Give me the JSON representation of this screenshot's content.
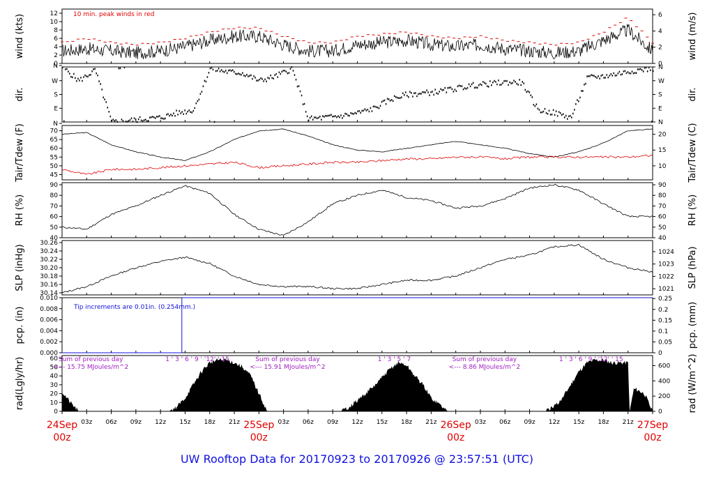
{
  "footer": {
    "title": "UW Rooftop Data for 20170923  to  20170926 @ 23:57:51  (UTC)"
  },
  "colors": {
    "series": "#000000",
    "peak": "#e00000",
    "dew": "#e00000",
    "precip": "#1010e0",
    "rad_note": "#a020c0",
    "title": "#1010e0"
  },
  "time_axis": {
    "hour_ticks": [
      "03z",
      "06z",
      "09z",
      "12z",
      "15z",
      "18z",
      "21z"
    ],
    "day_labels": [
      {
        "day": "24Sep",
        "hour": "00z"
      },
      {
        "day": "25Sep",
        "hour": "00z"
      },
      {
        "day": "26Sep",
        "hour": "00z"
      },
      {
        "day": "27Sep",
        "hour": "00z"
      }
    ],
    "x_range_hours": [
      0,
      72
    ]
  },
  "chart_data": [
    {
      "id": "wind",
      "type": "line",
      "ylabel_left": "wind (kts)",
      "ylabel_right": "wind (m/s)",
      "left_ticks": [
        "0",
        "2",
        "4",
        "6",
        "8",
        "10",
        "12"
      ],
      "ylim_left": [
        0,
        13
      ],
      "right_ticks": [
        "0",
        "2",
        "4",
        "6"
      ],
      "ylim_right": [
        0,
        6.7
      ],
      "annotation": "10 min. peak winds in red",
      "series": [
        {
          "name": "wind speed",
          "x": [
            0,
            3,
            6,
            9,
            12,
            15,
            18,
            21,
            24,
            27,
            30,
            33,
            36,
            39,
            42,
            45,
            48,
            51,
            54,
            57,
            60,
            63,
            66,
            69,
            72
          ],
          "values": [
            3,
            3.5,
            3,
            2.5,
            3,
            4,
            5.5,
            6.5,
            6.5,
            4.5,
            3,
            3,
            4.5,
            5,
            5.5,
            4.5,
            4,
            4.5,
            3.5,
            3,
            2.5,
            3,
            5.5,
            8,
            3
          ]
        },
        {
          "name": "peak",
          "x": [
            0,
            3,
            6,
            9,
            12,
            15,
            18,
            21,
            24,
            27,
            30,
            33,
            36,
            39,
            42,
            45,
            48,
            51,
            54,
            57,
            60,
            63,
            66,
            69,
            72
          ],
          "values": [
            5,
            6,
            5,
            4.5,
            5,
            6,
            7.5,
            8.5,
            8.5,
            6.5,
            5,
            5,
            6.5,
            7,
            7.5,
            6.5,
            6,
            6.5,
            5.5,
            5,
            4.5,
            5,
            7.5,
            11,
            5
          ]
        }
      ]
    },
    {
      "id": "dir",
      "type": "scatter",
      "ylabel_left": "dir.",
      "ylabel_right": "dir.",
      "left_ticks": [
        "N",
        "E",
        "S",
        "W",
        "N"
      ],
      "right_ticks": [
        "N",
        "E",
        "S",
        "W",
        "N"
      ],
      "ylim": [
        0,
        360
      ],
      "x": [
        0,
        2,
        4,
        6,
        8,
        10,
        12,
        14,
        16,
        18,
        20,
        22,
        24,
        26,
        28,
        30,
        32,
        34,
        36,
        38,
        40,
        42,
        44,
        46,
        48,
        50,
        52,
        54,
        56,
        58,
        60,
        62,
        64,
        66,
        68,
        70,
        72
      ],
      "values": [
        360,
        270,
        340,
        0,
        10,
        20,
        30,
        60,
        80,
        350,
        330,
        320,
        270,
        300,
        350,
        20,
        30,
        40,
        60,
        90,
        150,
        180,
        190,
        200,
        220,
        240,
        250,
        260,
        260,
        80,
        60,
        30,
        290,
        300,
        320,
        340,
        350
      ]
    },
    {
      "id": "temp",
      "type": "line",
      "ylabel_left": "Tair/Tdew (F)",
      "ylabel_right": "Tair/Tdew (C)",
      "left_ticks": [
        "45",
        "50",
        "55",
        "60",
        "65",
        "70"
      ],
      "ylim_left": [
        42,
        73
      ],
      "right_ticks": [
        "10",
        "15",
        "20"
      ],
      "ylim_right": [
        5.56,
        22.78
      ],
      "series": [
        {
          "name": "Tair",
          "x": [
            0,
            3,
            6,
            9,
            12,
            15,
            18,
            21,
            24,
            27,
            30,
            33,
            36,
            39,
            42,
            45,
            48,
            51,
            54,
            57,
            60,
            63,
            66,
            69,
            72
          ],
          "values": [
            68,
            69,
            62,
            58,
            55,
            53,
            58,
            65,
            70,
            71,
            67,
            62,
            59,
            58,
            60,
            62,
            64,
            62,
            60,
            57,
            55,
            58,
            63,
            70,
            71
          ]
        },
        {
          "name": "Tdew",
          "x": [
            0,
            3,
            6,
            9,
            12,
            15,
            18,
            21,
            24,
            27,
            30,
            33,
            36,
            39,
            42,
            45,
            48,
            51,
            54,
            57,
            60,
            63,
            66,
            69,
            72
          ],
          "values": [
            48,
            45,
            48,
            48,
            49,
            50,
            51,
            52,
            49,
            50,
            51,
            52,
            52,
            53,
            54,
            54,
            55,
            55,
            54,
            55,
            55,
            55,
            55,
            55,
            56
          ]
        }
      ]
    },
    {
      "id": "rh",
      "type": "line",
      "ylabel_left": "RH (%)",
      "ylabel_right": "RH (%)",
      "left_ticks": [
        "40",
        "50",
        "60",
        "70",
        "80",
        "90"
      ],
      "ylim_left": [
        40,
        92
      ],
      "right_ticks": [
        "40",
        "50",
        "60",
        "70",
        "80",
        "90"
      ],
      "x": [
        0,
        3,
        6,
        9,
        12,
        15,
        18,
        21,
        24,
        27,
        30,
        33,
        36,
        39,
        42,
        45,
        48,
        51,
        54,
        57,
        60,
        63,
        66,
        69,
        72
      ],
      "values": [
        50,
        48,
        62,
        70,
        80,
        89,
        82,
        62,
        48,
        42,
        55,
        72,
        80,
        85,
        78,
        75,
        68,
        70,
        77,
        87,
        90,
        85,
        72,
        60,
        60
      ]
    },
    {
      "id": "slp",
      "type": "line",
      "ylabel_left": "SLP (inHg)",
      "ylabel_right": "SLP (hPa)",
      "left_ticks": [
        "30.14",
        "30.16",
        "30.18",
        "30.20",
        "30.22",
        "30.24",
        "30.26"
      ],
      "ylim_left": [
        30.135,
        30.265
      ],
      "right_ticks": [
        "1021",
        "1022",
        "1023",
        "1024"
      ],
      "ylim_right": [
        1020.5,
        1024.9
      ],
      "x": [
        0,
        3,
        6,
        9,
        12,
        15,
        18,
        21,
        24,
        27,
        30,
        33,
        36,
        39,
        42,
        45,
        48,
        51,
        54,
        57,
        60,
        63,
        66,
        69,
        72
      ],
      "values": [
        30.14,
        30.155,
        30.18,
        30.2,
        30.215,
        30.225,
        30.21,
        30.18,
        30.16,
        30.155,
        30.155,
        30.15,
        30.15,
        30.16,
        30.17,
        30.17,
        30.18,
        30.2,
        30.22,
        30.23,
        30.25,
        30.255,
        30.22,
        30.2,
        30.19
      ]
    },
    {
      "id": "pcp",
      "type": "line",
      "ylabel_left": "pcp. (in)",
      "ylabel_right": "pcp. (mm)",
      "left_ticks": [
        "0.000",
        "0.002",
        "0.004",
        "0.006",
        "0.008",
        "0.010"
      ],
      "ylim_left": [
        0,
        0.01
      ],
      "right_ticks": [
        "0",
        "0.05",
        "0.1",
        "0.15",
        "0.2",
        "0.25"
      ],
      "ylim_right": [
        0,
        0.254
      ],
      "annotation": "Tip increments are 0.01in. (0.254mm.)",
      "x": [
        0,
        14.6,
        14.6,
        72
      ],
      "values": [
        0,
        0,
        0.01,
        0.01
      ]
    },
    {
      "id": "rad",
      "type": "area",
      "ylabel_left": "rad(Lgly/hr)",
      "ylabel_right": "rad (W/m^2)",
      "left_ticks": [
        "0",
        "10",
        "20",
        "30",
        "40",
        "50",
        "60"
      ],
      "ylim_left": [
        0,
        63
      ],
      "right_ticks": [
        "0",
        "200",
        "400",
        "600"
      ],
      "ylim_right": [
        0,
        733
      ],
      "annotations": [
        {
          "line1": "Sum of previous day",
          "line2": "<--- 15.75 MJoules/m^2"
        },
        {
          "line1": "Sum of previous day",
          "line2": "<--- 15.91 MJoules/m^2"
        },
        {
          "line1": "Sum of previous day",
          "line2": "<--- 8.86 MJoules/m^2"
        }
      ],
      "hour_labels": [
        {
          "text": "1 ' 3 ' 6 ' 9 ' '12' ' 15",
          "hour": 16.5
        },
        {
          "text": "1 ' 3 ' 5 ' 7",
          "hour": 40.5
        },
        {
          "text": "1 ' 3 ' 6 ' 9 ' '12' ' 15",
          "hour": 64.5
        }
      ],
      "x": [
        0,
        1,
        2,
        13,
        14,
        15,
        16,
        17,
        18,
        19,
        20,
        21,
        22,
        23,
        24,
        25,
        34,
        35,
        36,
        37,
        38,
        39,
        40,
        41,
        42,
        43,
        44,
        45,
        46,
        47,
        48,
        49,
        59,
        60,
        61,
        62,
        63,
        64,
        65,
        66,
        67,
        68,
        69,
        69.2,
        69.7,
        70,
        71,
        72
      ],
      "values": [
        22,
        10,
        0,
        0,
        5,
        15,
        30,
        45,
        55,
        58,
        58,
        55,
        50,
        40,
        20,
        0,
        0,
        5,
        12,
        20,
        28,
        38,
        48,
        55,
        52,
        40,
        30,
        15,
        8,
        0,
        0,
        0,
        0,
        5,
        15,
        30,
        45,
        55,
        58,
        58,
        55,
        55,
        55,
        0,
        25,
        25,
        20,
        0
      ]
    }
  ]
}
